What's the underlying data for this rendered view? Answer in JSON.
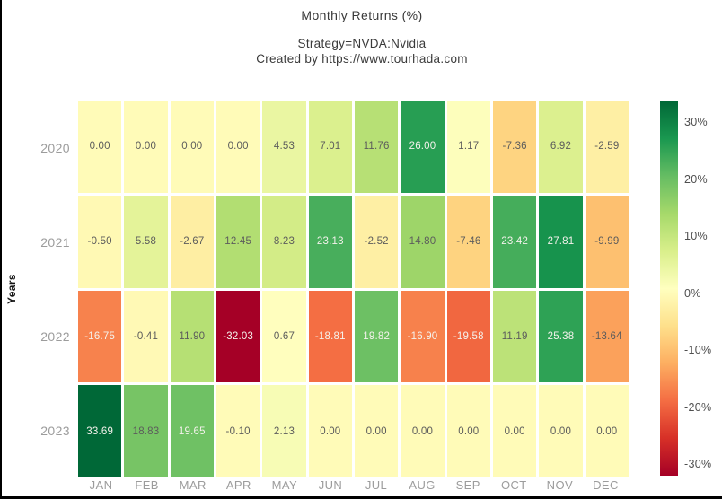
{
  "header": {
    "title": "Monthly Returns (%)",
    "subtitle_strategy": "Strategy=NVDA:Nvidia",
    "subtitle_credit": "Created by https://www.tourhada.com"
  },
  "chart_data": {
    "type": "heatmap",
    "title": "Monthly Returns (%)",
    "xlabel": "",
    "ylabel": "Years",
    "x_categories": [
      "JAN",
      "FEB",
      "MAR",
      "APR",
      "MAY",
      "JUN",
      "JUL",
      "AUG",
      "SEP",
      "OCT",
      "NOV",
      "DEC"
    ],
    "y_categories": [
      "2020",
      "2021",
      "2022",
      "2023"
    ],
    "series": [
      {
        "name": "2020",
        "values": [
          0.0,
          0.0,
          0.0,
          0.0,
          4.53,
          7.01,
          11.76,
          26.0,
          1.17,
          -7.36,
          6.92,
          -2.59
        ]
      },
      {
        "name": "2021",
        "values": [
          -0.5,
          5.58,
          -2.67,
          12.45,
          8.23,
          23.13,
          -2.52,
          14.8,
          -7.46,
          23.42,
          27.81,
          -9.99
        ]
      },
      {
        "name": "2022",
        "values": [
          -16.75,
          -0.41,
          11.9,
          -32.03,
          0.67,
          -18.81,
          19.82,
          -16.9,
          -19.58,
          11.19,
          25.38,
          -13.64
        ]
      },
      {
        "name": "2023",
        "values": [
          33.69,
          18.83,
          19.65,
          -0.1,
          2.13,
          0.0,
          0.0,
          0.0,
          0.0,
          0.0,
          0.0,
          0.0
        ]
      }
    ],
    "value_format_decimals": 2,
    "colorscale": {
      "name": "RdYlGn",
      "zmin": -32.03,
      "zmax": 33.69,
      "anchors": [
        "#a50026",
        "#d73027",
        "#f46d43",
        "#fdae61",
        "#fee08b",
        "#ffffbf",
        "#d9ef8b",
        "#a6d96a",
        "#66bd63",
        "#1a9850",
        "#006837"
      ]
    },
    "colorbar": {
      "position": "right",
      "tick_values": [
        30,
        20,
        10,
        0,
        -10,
        -20,
        -30
      ],
      "tick_labels": [
        "30%",
        "20%",
        "10%",
        "0%",
        "-10%",
        "-20%",
        "-30%"
      ]
    },
    "grid": false
  },
  "colors": {
    "cell_text_dark": "#5c5c5c",
    "cell_text_light": "#f4f2ec",
    "axis_tick": "#9c9c9c",
    "colorbar_tick": "#4f4f4f",
    "title_text": "#3a3a3a",
    "background": "#ffffff",
    "frame_border": "#000000"
  }
}
